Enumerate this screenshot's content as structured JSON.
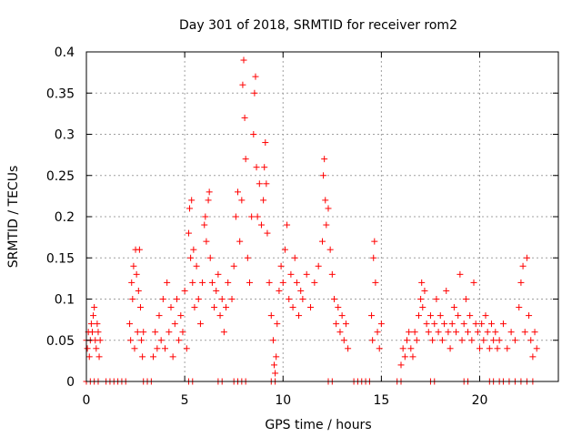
{
  "chart_data": {
    "type": "scatter",
    "title": "Day 301 of 2018, SRMTID for receiver rom2",
    "xlabel": "GPS time / hours",
    "ylabel": "SRMTID / TECUs",
    "xlim": [
      0,
      24
    ],
    "ylim": [
      0,
      0.4
    ],
    "xticks": [
      0,
      5,
      10,
      15,
      20
    ],
    "xtick_labels": [
      "0",
      "5",
      "10",
      "15",
      "20"
    ],
    "yticks": [
      0,
      0.05,
      0.1,
      0.15,
      0.2,
      0.25,
      0.3,
      0.35,
      0.4
    ],
    "ytick_labels": [
      "0",
      "0.05",
      "0.1",
      "0.15",
      "0.2",
      "0.25",
      "0.3",
      "0.35",
      "0.4"
    ],
    "grid": true,
    "marker": "+",
    "color": "#ff0000",
    "series": [
      {
        "name": "SRMTID",
        "points": [
          [
            0.0,
            0.05
          ],
          [
            0.05,
            0.04
          ],
          [
            0.1,
            0.06
          ],
          [
            0.15,
            0.03
          ],
          [
            0.2,
            0.05
          ],
          [
            0.25,
            0.07
          ],
          [
            0.3,
            0.06
          ],
          [
            0.35,
            0.08
          ],
          [
            0.4,
            0.09
          ],
          [
            0.45,
            0.05
          ],
          [
            0.5,
            0.04
          ],
          [
            0.55,
            0.07
          ],
          [
            0.6,
            0.06
          ],
          [
            0.65,
            0.03
          ],
          [
            0.7,
            0.05
          ],
          [
            2.2,
            0.07
          ],
          [
            2.25,
            0.05
          ],
          [
            2.3,
            0.12
          ],
          [
            2.35,
            0.1
          ],
          [
            2.4,
            0.14
          ],
          [
            2.45,
            0.04
          ],
          [
            2.5,
            0.16
          ],
          [
            2.55,
            0.13
          ],
          [
            2.6,
            0.06
          ],
          [
            2.65,
            0.11
          ],
          [
            2.7,
            0.16
          ],
          [
            2.75,
            0.09
          ],
          [
            2.8,
            0.05
          ],
          [
            2.85,
            0.03
          ],
          [
            2.9,
            0.06
          ],
          [
            3.4,
            0.03
          ],
          [
            3.5,
            0.06
          ],
          [
            3.6,
            0.04
          ],
          [
            3.7,
            0.08
          ],
          [
            3.8,
            0.05
          ],
          [
            3.9,
            0.1
          ],
          [
            4.0,
            0.04
          ],
          [
            4.1,
            0.12
          ],
          [
            4.2,
            0.06
          ],
          [
            4.3,
            0.09
          ],
          [
            4.4,
            0.03
          ],
          [
            4.5,
            0.07
          ],
          [
            4.6,
            0.1
          ],
          [
            4.7,
            0.05
          ],
          [
            4.8,
            0.08
          ],
          [
            4.9,
            0.06
          ],
          [
            5.0,
            0.11
          ],
          [
            5.1,
            0.04
          ],
          [
            5.2,
            0.18
          ],
          [
            5.25,
            0.21
          ],
          [
            5.3,
            0.15
          ],
          [
            5.35,
            0.22
          ],
          [
            5.4,
            0.12
          ],
          [
            5.45,
            0.16
          ],
          [
            5.5,
            0.09
          ],
          [
            5.6,
            0.14
          ],
          [
            5.7,
            0.1
          ],
          [
            5.8,
            0.07
          ],
          [
            5.9,
            0.12
          ],
          [
            6.0,
            0.19
          ],
          [
            6.05,
            0.2
          ],
          [
            6.1,
            0.17
          ],
          [
            6.2,
            0.22
          ],
          [
            6.25,
            0.23
          ],
          [
            6.3,
            0.15
          ],
          [
            6.4,
            0.12
          ],
          [
            6.5,
            0.09
          ],
          [
            6.6,
            0.11
          ],
          [
            6.7,
            0.13
          ],
          [
            6.8,
            0.08
          ],
          [
            6.9,
            0.1
          ],
          [
            7.0,
            0.06
          ],
          [
            7.1,
            0.09
          ],
          [
            7.2,
            0.12
          ],
          [
            7.4,
            0.1
          ],
          [
            7.5,
            0.14
          ],
          [
            7.6,
            0.2
          ],
          [
            7.7,
            0.23
          ],
          [
            7.8,
            0.17
          ],
          [
            7.9,
            0.22
          ],
          [
            7.95,
            0.36
          ],
          [
            8.0,
            0.39
          ],
          [
            8.05,
            0.32
          ],
          [
            8.1,
            0.27
          ],
          [
            8.2,
            0.15
          ],
          [
            8.3,
            0.12
          ],
          [
            8.4,
            0.2
          ],
          [
            8.5,
            0.3
          ],
          [
            8.55,
            0.35
          ],
          [
            8.6,
            0.37
          ],
          [
            8.65,
            0.26
          ],
          [
            8.7,
            0.2
          ],
          [
            8.8,
            0.24
          ],
          [
            8.9,
            0.19
          ],
          [
            9.0,
            0.22
          ],
          [
            9.05,
            0.26
          ],
          [
            9.1,
            0.29
          ],
          [
            9.15,
            0.24
          ],
          [
            9.2,
            0.18
          ],
          [
            9.3,
            0.12
          ],
          [
            9.4,
            0.08
          ],
          [
            9.5,
            0.05
          ],
          [
            9.55,
            0.02
          ],
          [
            9.6,
            0.01
          ],
          [
            9.65,
            0.03
          ],
          [
            9.7,
            0.07
          ],
          [
            9.8,
            0.11
          ],
          [
            9.9,
            0.14
          ],
          [
            10.0,
            0.12
          ],
          [
            10.1,
            0.16
          ],
          [
            10.2,
            0.19
          ],
          [
            10.3,
            0.1
          ],
          [
            10.4,
            0.13
          ],
          [
            10.5,
            0.09
          ],
          [
            10.6,
            0.15
          ],
          [
            10.7,
            0.12
          ],
          [
            10.8,
            0.08
          ],
          [
            10.9,
            0.11
          ],
          [
            11.0,
            0.1
          ],
          [
            11.2,
            0.13
          ],
          [
            11.4,
            0.09
          ],
          [
            11.6,
            0.12
          ],
          [
            11.8,
            0.14
          ],
          [
            12.0,
            0.17
          ],
          [
            12.05,
            0.25
          ],
          [
            12.1,
            0.27
          ],
          [
            12.15,
            0.22
          ],
          [
            12.2,
            0.19
          ],
          [
            12.3,
            0.21
          ],
          [
            12.4,
            0.16
          ],
          [
            12.5,
            0.13
          ],
          [
            12.6,
            0.1
          ],
          [
            12.7,
            0.07
          ],
          [
            12.8,
            0.09
          ],
          [
            12.9,
            0.06
          ],
          [
            13.0,
            0.08
          ],
          [
            13.1,
            0.05
          ],
          [
            13.2,
            0.07
          ],
          [
            13.3,
            0.04
          ],
          [
            14.5,
            0.08
          ],
          [
            14.55,
            0.05
          ],
          [
            14.6,
            0.15
          ],
          [
            14.65,
            0.17
          ],
          [
            14.7,
            0.12
          ],
          [
            14.8,
            0.06
          ],
          [
            14.9,
            0.04
          ],
          [
            15.0,
            0.07
          ],
          [
            16.0,
            0.02
          ],
          [
            16.1,
            0.04
          ],
          [
            16.2,
            0.03
          ],
          [
            16.3,
            0.05
          ],
          [
            16.4,
            0.06
          ],
          [
            16.5,
            0.04
          ],
          [
            16.6,
            0.03
          ],
          [
            16.7,
            0.06
          ],
          [
            16.8,
            0.05
          ],
          [
            16.9,
            0.08
          ],
          [
            17.0,
            0.1
          ],
          [
            17.05,
            0.12
          ],
          [
            17.1,
            0.09
          ],
          [
            17.2,
            0.11
          ],
          [
            17.3,
            0.07
          ],
          [
            17.4,
            0.06
          ],
          [
            17.5,
            0.08
          ],
          [
            17.6,
            0.05
          ],
          [
            17.7,
            0.07
          ],
          [
            17.8,
            0.1
          ],
          [
            17.9,
            0.06
          ],
          [
            18.0,
            0.08
          ],
          [
            18.1,
            0.05
          ],
          [
            18.2,
            0.07
          ],
          [
            18.3,
            0.11
          ],
          [
            18.4,
            0.06
          ],
          [
            18.5,
            0.04
          ],
          [
            18.6,
            0.07
          ],
          [
            18.7,
            0.09
          ],
          [
            18.8,
            0.06
          ],
          [
            18.9,
            0.08
          ],
          [
            19.0,
            0.13
          ],
          [
            19.1,
            0.05
          ],
          [
            19.2,
            0.07
          ],
          [
            19.3,
            0.1
          ],
          [
            19.4,
            0.06
          ],
          [
            19.5,
            0.08
          ],
          [
            19.6,
            0.05
          ],
          [
            19.7,
            0.12
          ],
          [
            19.8,
            0.07
          ],
          [
            19.9,
            0.06
          ],
          [
            20.0,
            0.04
          ],
          [
            20.1,
            0.07
          ],
          [
            20.2,
            0.05
          ],
          [
            20.3,
            0.08
          ],
          [
            20.4,
            0.06
          ],
          [
            20.5,
            0.04
          ],
          [
            20.6,
            0.07
          ],
          [
            20.7,
            0.05
          ],
          [
            20.8,
            0.06
          ],
          [
            20.9,
            0.04
          ],
          [
            21.0,
            0.05
          ],
          [
            21.2,
            0.07
          ],
          [
            21.4,
            0.04
          ],
          [
            21.6,
            0.06
          ],
          [
            21.8,
            0.05
          ],
          [
            22.0,
            0.09
          ],
          [
            22.1,
            0.12
          ],
          [
            22.2,
            0.14
          ],
          [
            22.3,
            0.06
          ],
          [
            22.4,
            0.15
          ],
          [
            22.5,
            0.08
          ],
          [
            22.6,
            0.05
          ],
          [
            22.7,
            0.03
          ],
          [
            22.8,
            0.06
          ],
          [
            22.9,
            0.04
          ],
          [
            0.0,
            0
          ],
          [
            0.2,
            0
          ],
          [
            0.4,
            0
          ],
          [
            0.6,
            0
          ],
          [
            1.0,
            0
          ],
          [
            1.2,
            0
          ],
          [
            1.4,
            0
          ],
          [
            1.6,
            0
          ],
          [
            1.8,
            0
          ],
          [
            2.0,
            0
          ],
          [
            2.9,
            0
          ],
          [
            3.1,
            0
          ],
          [
            3.3,
            0
          ],
          [
            5.2,
            0
          ],
          [
            5.4,
            0
          ],
          [
            6.7,
            0
          ],
          [
            6.9,
            0
          ],
          [
            7.5,
            0
          ],
          [
            7.7,
            0
          ],
          [
            7.9,
            0
          ],
          [
            8.1,
            0
          ],
          [
            9.4,
            0
          ],
          [
            9.6,
            0
          ],
          [
            12.3,
            0
          ],
          [
            12.5,
            0
          ],
          [
            13.6,
            0
          ],
          [
            13.8,
            0
          ],
          [
            14.0,
            0
          ],
          [
            14.2,
            0
          ],
          [
            14.4,
            0
          ],
          [
            15.8,
            0
          ],
          [
            16.0,
            0
          ],
          [
            17.5,
            0
          ],
          [
            17.7,
            0
          ],
          [
            19.2,
            0
          ],
          [
            19.4,
            0
          ],
          [
            20.5,
            0
          ],
          [
            20.7,
            0
          ],
          [
            21.0,
            0
          ],
          [
            21.2,
            0
          ],
          [
            21.5,
            0
          ],
          [
            21.8,
            0
          ],
          [
            22.1,
            0
          ],
          [
            22.4,
            0
          ],
          [
            22.7,
            0
          ]
        ]
      }
    ]
  }
}
